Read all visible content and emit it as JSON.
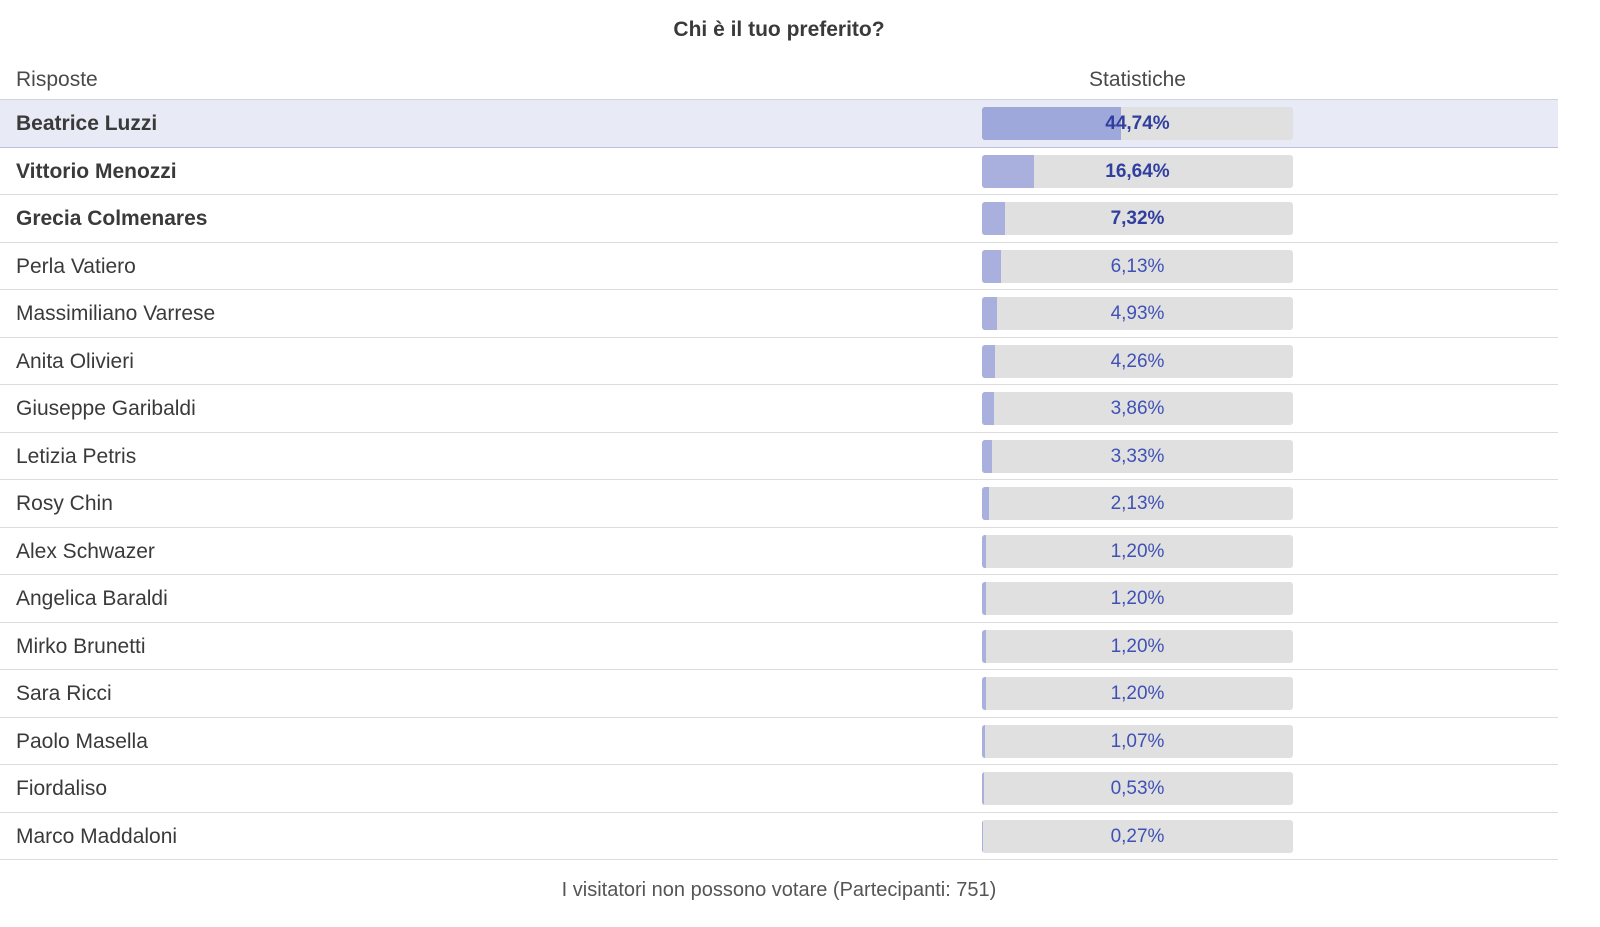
{
  "poll": {
    "title": "Chi è il tuo preferito?",
    "header": {
      "answers": "Risposte",
      "statistics": "Statistiche"
    },
    "rows": [
      {
        "name": "Beatrice Luzzi",
        "percent_label": "44,74%",
        "percent": 44.74
      },
      {
        "name": "Vittorio Menozzi",
        "percent_label": "16,64%",
        "percent": 16.64
      },
      {
        "name": "Grecia Colmenares",
        "percent_label": "7,32%",
        "percent": 7.32
      },
      {
        "name": "Perla Vatiero",
        "percent_label": "6,13%",
        "percent": 6.13
      },
      {
        "name": "Massimiliano Varrese",
        "percent_label": "4,93%",
        "percent": 4.93
      },
      {
        "name": "Anita Olivieri",
        "percent_label": "4,26%",
        "percent": 4.26
      },
      {
        "name": "Giuseppe Garibaldi",
        "percent_label": "3,86%",
        "percent": 3.86
      },
      {
        "name": "Letizia Petris",
        "percent_label": "3,33%",
        "percent": 3.33
      },
      {
        "name": "Rosy Chin",
        "percent_label": "2,13%",
        "percent": 2.13
      },
      {
        "name": "Alex Schwazer",
        "percent_label": "1,20%",
        "percent": 1.2
      },
      {
        "name": "Angelica Baraldi",
        "percent_label": "1,20%",
        "percent": 1.2
      },
      {
        "name": "Mirko Brunetti",
        "percent_label": "1,20%",
        "percent": 1.2
      },
      {
        "name": "Sara Ricci",
        "percent_label": "1,20%",
        "percent": 1.2
      },
      {
        "name": "Paolo Masella",
        "percent_label": "1,07%",
        "percent": 1.07
      },
      {
        "name": "Fiordaliso",
        "percent_label": "0,53%",
        "percent": 0.53
      },
      {
        "name": "Marco Maddaloni",
        "percent_label": "0,27%",
        "percent": 0.27
      }
    ],
    "footer": "I visitatori non possono votare (Partecipanti: 751)"
  },
  "colors": {
    "bar_fill": "#a9b0dd",
    "bar_track": "#e0e0e0",
    "percent_text": "#3f51b5",
    "highlight_row": "#e8eaf6"
  }
}
